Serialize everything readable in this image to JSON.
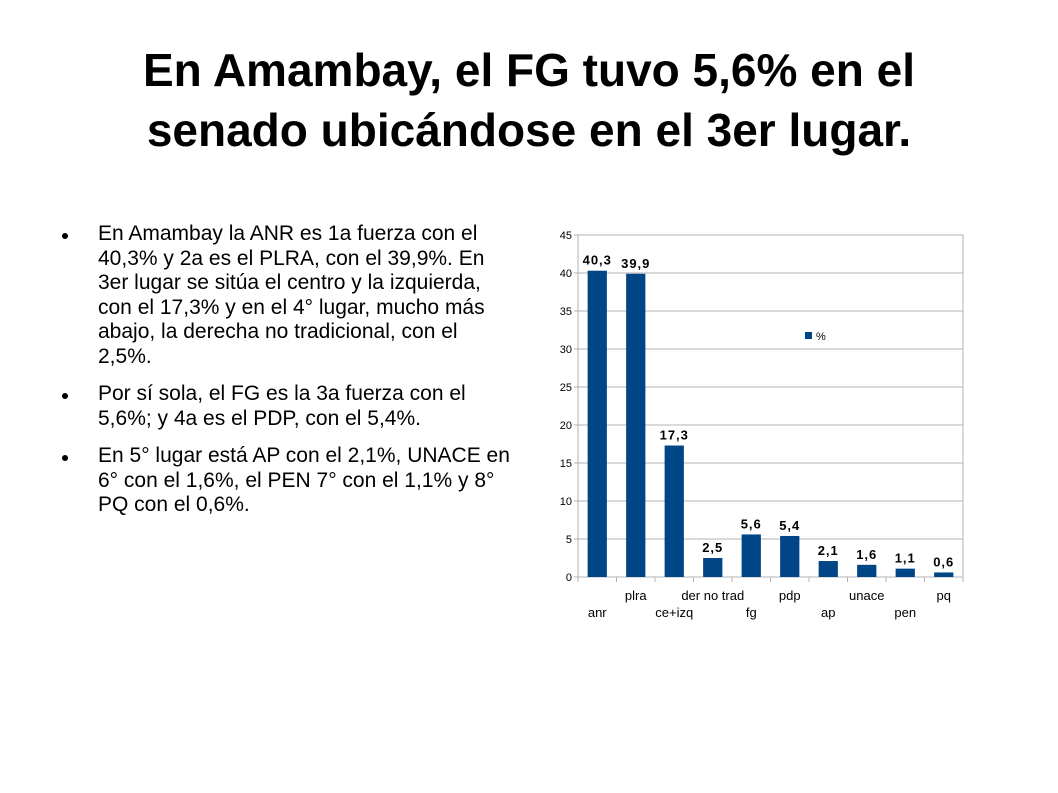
{
  "slide": {
    "title_line1": "En Amambay, el FG tuvo 5,6% en el",
    "title_line2": "senado ubicándose en el 3er lugar.",
    "bullets": [
      "En Amambay la ANR es 1a fuerza con el 40,3% y 2a es el PLRA, con el 39,9%. En 3er lugar se sitúa el centro y la izquierda, con el 17,3% y en el 4° lugar, mucho más abajo, la derecha no tradicional, con el 2,5%.",
      "Por sí sola, el FG es la 3a fuerza con el 5,6%; y 4a es el PDP, con el 5,4%.",
      "En 5° lugar está AP con el 2,1%, UNACE en 6° con el 1,6%, el PEN 7° con el 1,1% y 8° PQ con el 0,6%."
    ]
  },
  "chart_data": {
    "type": "bar",
    "categories": [
      "anr",
      "plra",
      "ce+izq",
      "der no trad",
      "fg",
      "pdp",
      "ap",
      "unace",
      "pen",
      "pq"
    ],
    "series": [
      {
        "name": "%",
        "values": [
          40.3,
          39.9,
          17.3,
          2.5,
          5.6,
          5.4,
          2.1,
          1.6,
          1.1,
          0.6
        ],
        "data_labels": [
          "40,3",
          "39,9",
          "17,3",
          "2,5",
          "5,6",
          "5,4",
          "2,1",
          "1,6",
          "1,1",
          "0,6"
        ]
      }
    ],
    "ylim": [
      0,
      45
    ],
    "yticks": [
      0,
      5,
      10,
      15,
      20,
      25,
      30,
      35,
      40,
      45
    ],
    "grid": true,
    "legend": "top-right",
    "bar_color": "#004586"
  }
}
